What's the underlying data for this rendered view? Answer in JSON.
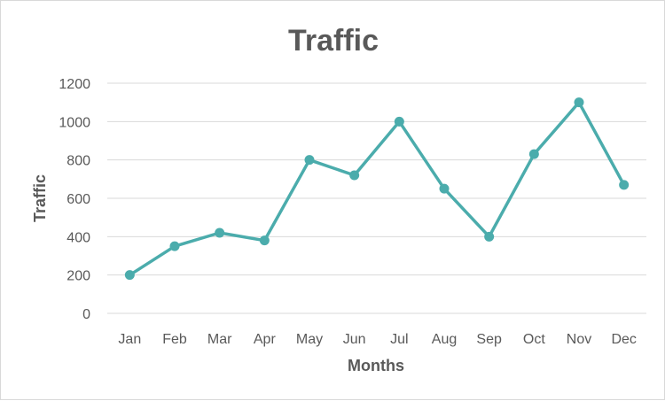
{
  "chart_data": {
    "type": "line",
    "title": "Traffic",
    "xlabel": "Months",
    "ylabel": "Traffic",
    "categories": [
      "Jan",
      "Feb",
      "Mar",
      "Apr",
      "May",
      "Jun",
      "Jul",
      "Aug",
      "Sep",
      "Oct",
      "Nov",
      "Dec"
    ],
    "values": [
      200,
      350,
      420,
      380,
      800,
      720,
      1000,
      650,
      400,
      830,
      1100,
      670
    ],
    "ylim": [
      0,
      1200
    ],
    "yticks": [
      "0",
      "200",
      "400",
      "600",
      "800",
      "1000",
      "1200"
    ],
    "grid": true,
    "legend": "none",
    "color": "#4BACAC"
  }
}
